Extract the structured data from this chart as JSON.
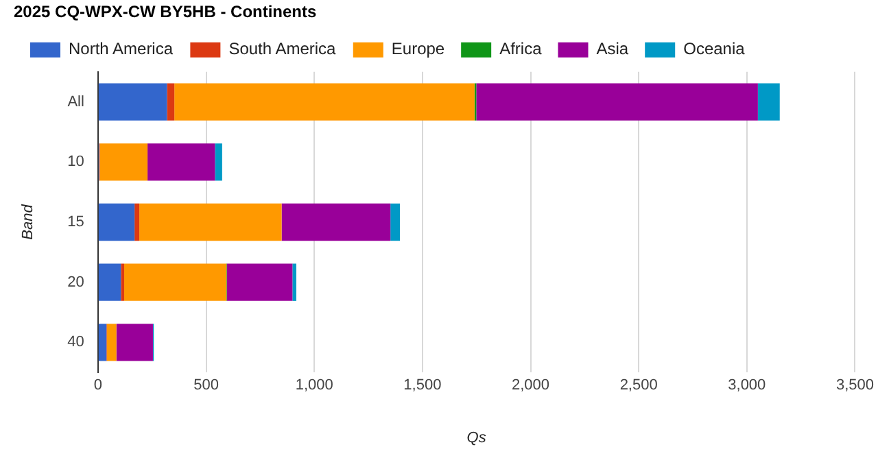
{
  "chart_data": {
    "type": "bar",
    "orientation": "horizontal",
    "stacked": true,
    "title": "2025 CQ-WPX-CW BY5HB - Continents",
    "xlabel": "Qs",
    "ylabel": "Band",
    "categories": [
      "All",
      "10",
      "15",
      "20",
      "40"
    ],
    "series": [
      {
        "name": "North America",
        "color": "#3366cc",
        "values": [
          319,
          5,
          169,
          106,
          39
        ]
      },
      {
        "name": "South America",
        "color": "#dc3912",
        "values": [
          34,
          3,
          22,
          15,
          2
        ]
      },
      {
        "name": "Europe",
        "color": "#ff9900",
        "values": [
          1388,
          221,
          658,
          473,
          44
        ]
      },
      {
        "name": "Africa",
        "color": "#109618",
        "values": [
          8,
          0,
          null,
          2,
          0
        ]
      },
      {
        "name": "Asia",
        "color": "#990099",
        "values": [
          1302,
          312,
          503,
          303,
          169
        ]
      },
      {
        "name": "Oceania",
        "color": "#0099c6",
        "values": [
          101,
          33,
          44,
          18,
          4
        ]
      }
    ],
    "xlim": [
      0,
      3500
    ],
    "xticks": [
      0,
      {
        "value": 500,
        "label": "500"
      },
      {
        "value": 1000,
        "label": "1,000"
      },
      {
        "value": 1500,
        "label": "1,500"
      },
      {
        "value": 2000,
        "label": "2,000"
      },
      {
        "value": 2500,
        "label": "2,500"
      },
      {
        "value": 3000,
        "label": "3,000"
      },
      {
        "value": 3500,
        "label": "3,500"
      }
    ],
    "grid": "x",
    "legend": "top left"
  }
}
